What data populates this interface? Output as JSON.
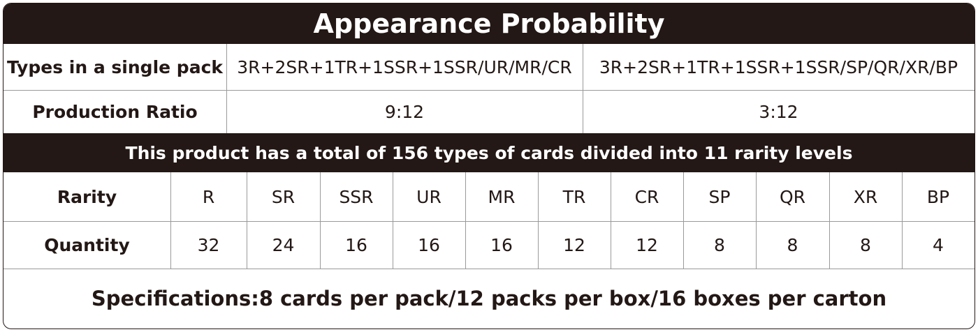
{
  "title": "Appearance Probability",
  "pack_table": {
    "rows": [
      [
        "Types in a single pack",
        "3R+2SR+1TR+1SSR+1SSR/UR/MR/CR",
        "3R+2SR+1TR+1SSR+1SSR/SP/QR/XR/BP"
      ],
      [
        "Production Ratio",
        "9:12",
        "3:12"
      ]
    ]
  },
  "banner": "This product has a total of 156 types of cards divided into 11 rarity levels",
  "rarity_table": {
    "rows": [
      [
        "Rarity",
        "R",
        "SR",
        "SSR",
        "UR",
        "MR",
        "TR",
        "CR",
        "SP",
        "QR",
        "XR",
        "BP"
      ],
      [
        "Quantity",
        32,
        24,
        16,
        16,
        16,
        12,
        12,
        8,
        8,
        8,
        4
      ]
    ]
  },
  "specifications": "Specifications:8 cards per pack/12 packs per box/16 boxes per carton"
}
